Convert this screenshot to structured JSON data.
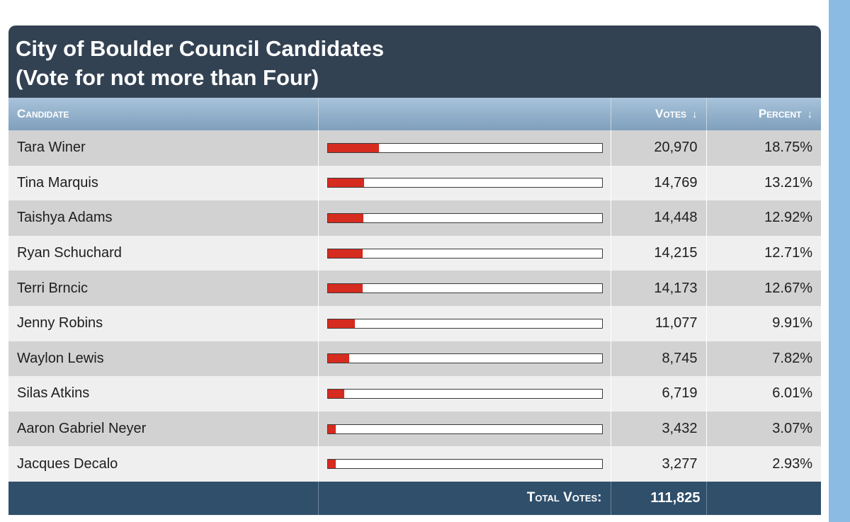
{
  "title": {
    "line1": "City of Boulder Council Candidates",
    "line2": "(Vote for not more than Four)"
  },
  "columns": {
    "candidate": "Candidate",
    "votes": "Votes",
    "percent": "Percent",
    "sort_icon": "arrow-down-icon"
  },
  "colors": {
    "title_bg": "#334253",
    "bar_fill": "#d62b1f",
    "footer_bg": "#2f4f6b"
  },
  "rows": [
    {
      "name": "Tara Winer",
      "votes": "20,970",
      "percent": "18.75%",
      "share": 0.1875
    },
    {
      "name": "Tina Marquis",
      "votes": "14,769",
      "percent": "13.21%",
      "share": 0.1321
    },
    {
      "name": "Taishya Adams",
      "votes": "14,448",
      "percent": "12.92%",
      "share": 0.1292
    },
    {
      "name": "Ryan Schuchard",
      "votes": "14,215",
      "percent": "12.71%",
      "share": 0.1271
    },
    {
      "name": "Terri Brncic",
      "votes": "14,173",
      "percent": "12.67%",
      "share": 0.1267
    },
    {
      "name": "Jenny Robins",
      "votes": "11,077",
      "percent": "9.91%",
      "share": 0.0991
    },
    {
      "name": "Waylon Lewis",
      "votes": "8,745",
      "percent": "7.82%",
      "share": 0.0782
    },
    {
      "name": "Silas Atkins",
      "votes": "6,719",
      "percent": "6.01%",
      "share": 0.0601
    },
    {
      "name": "Aaron Gabriel Neyer",
      "votes": "3,432",
      "percent": "3.07%",
      "share": 0.0307
    },
    {
      "name": "Jacques Decalo",
      "votes": "3,277",
      "percent": "2.93%",
      "share": 0.0293
    }
  ],
  "footer": {
    "label": "Total Votes:",
    "total": "111,825"
  }
}
